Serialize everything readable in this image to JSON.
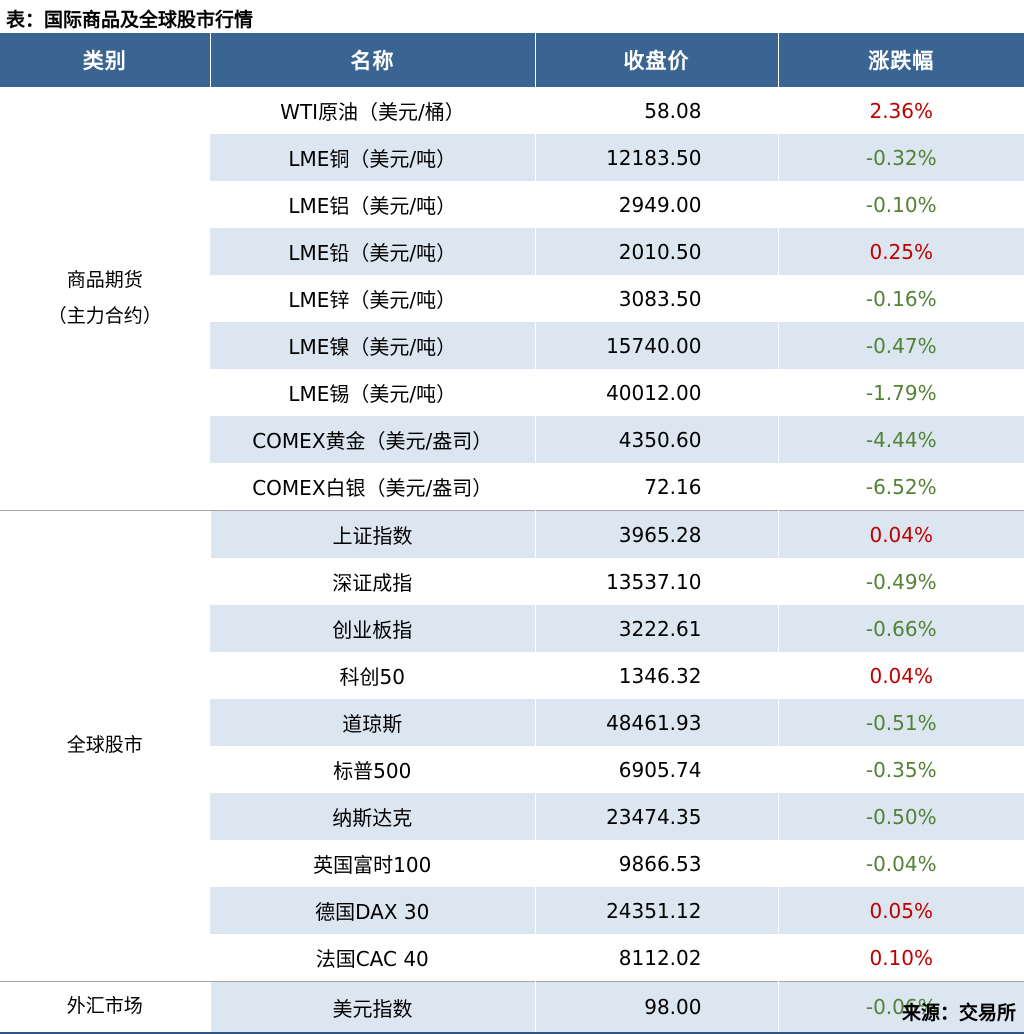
{
  "title": "表：国际商品及全球股市行情",
  "source": "来源：交易所",
  "colors": {
    "page_bg": "#FFFFFF",
    "header_bg": "#3A6491",
    "header_text": "#FFFFFF",
    "stripe": "#DCE6F1",
    "up": "#C00000",
    "down": "#538135",
    "section_divider": "#A6A6A6",
    "bottom_rule": "#2E5584"
  },
  "table": {
    "columns": [
      "类别",
      "名称",
      "收盘价",
      "涨跌幅"
    ],
    "sections": [
      {
        "category_lines": [
          "商品期货",
          "（主力合约）"
        ],
        "rows": [
          {
            "name": "WTI原油（美元/桶）",
            "close": "58.08",
            "change": "2.36%"
          },
          {
            "name": "LME铜（美元/吨）",
            "close": "12183.50",
            "change": "-0.32%"
          },
          {
            "name": "LME铝（美元/吨）",
            "close": "2949.00",
            "change": "-0.10%"
          },
          {
            "name": "LME铅（美元/吨）",
            "close": "2010.50",
            "change": "0.25%"
          },
          {
            "name": "LME锌（美元/吨）",
            "close": "3083.50",
            "change": "-0.16%"
          },
          {
            "name": "LME镍（美元/吨）",
            "close": "15740.00",
            "change": "-0.47%"
          },
          {
            "name": "LME锡（美元/吨）",
            "close": "40012.00",
            "change": "-1.79%"
          },
          {
            "name": "COMEX黄金（美元/盎司）",
            "close": "4350.60",
            "change": "-4.44%"
          },
          {
            "name": "COMEX白银（美元/盎司）",
            "close": "72.16",
            "change": "-6.52%"
          }
        ]
      },
      {
        "category_lines": [
          "全球股市"
        ],
        "rows": [
          {
            "name": "上证指数",
            "close": "3965.28",
            "change": "0.04%"
          },
          {
            "name": "深证成指",
            "close": "13537.10",
            "change": "-0.49%"
          },
          {
            "name": "创业板指",
            "close": "3222.61",
            "change": "-0.66%"
          },
          {
            "name": "科创50",
            "close": "1346.32",
            "change": "0.04%"
          },
          {
            "name": "道琼斯",
            "close": "48461.93",
            "change": "-0.51%"
          },
          {
            "name": "标普500",
            "close": "6905.74",
            "change": "-0.35%"
          },
          {
            "name": "纳斯达克",
            "close": "23474.35",
            "change": "-0.50%"
          },
          {
            "name": "英国富时100",
            "close": "9866.53",
            "change": "-0.04%"
          },
          {
            "name": "德国DAX 30",
            "close": "24351.12",
            "change": "0.05%"
          },
          {
            "name": "法国CAC 40",
            "close": "8112.02",
            "change": "0.10%"
          }
        ]
      },
      {
        "category_lines": [
          "外汇市场"
        ],
        "rows": [
          {
            "name": "美元指数",
            "close": "98.00",
            "change": "-0.06%"
          }
        ]
      }
    ]
  },
  "chart_data": {
    "type": "table",
    "title": "表：国际商品及全球股市行情",
    "source": "来源：交易所",
    "columns": [
      "类别",
      "名称",
      "收盘价",
      "涨跌幅"
    ],
    "rows": [
      [
        "商品期货（主力合约）",
        "WTI原油（美元/桶）",
        58.08,
        "2.36%"
      ],
      [
        "商品期货（主力合约）",
        "LME铜（美元/吨）",
        12183.5,
        "-0.32%"
      ],
      [
        "商品期货（主力合约）",
        "LME铝（美元/吨）",
        2949.0,
        "-0.10%"
      ],
      [
        "商品期货（主力合约）",
        "LME铅（美元/吨）",
        2010.5,
        "0.25%"
      ],
      [
        "商品期货（主力合约）",
        "LME锌（美元/吨）",
        3083.5,
        "-0.16%"
      ],
      [
        "商品期货（主力合约）",
        "LME镍（美元/吨）",
        15740.0,
        "-0.47%"
      ],
      [
        "商品期货（主力合约）",
        "LME锡（美元/吨）",
        40012.0,
        "-1.79%"
      ],
      [
        "商品期货（主力合约）",
        "COMEX黄金（美元/盎司）",
        4350.6,
        "-4.44%"
      ],
      [
        "商品期货（主力合约）",
        "COMEX白银（美元/盎司）",
        72.16,
        "-6.52%"
      ],
      [
        "全球股市",
        "上证指数",
        3965.28,
        "0.04%"
      ],
      [
        "全球股市",
        "深证成指",
        13537.1,
        "-0.49%"
      ],
      [
        "全球股市",
        "创业板指",
        3222.61,
        "-0.66%"
      ],
      [
        "全球股市",
        "科创50",
        1346.32,
        "0.04%"
      ],
      [
        "全球股市",
        "道琼斯",
        48461.93,
        "-0.51%"
      ],
      [
        "全球股市",
        "标普500",
        6905.74,
        "-0.35%"
      ],
      [
        "全球股市",
        "纳斯达克",
        23474.35,
        "-0.50%"
      ],
      [
        "全球股市",
        "英国富时100",
        9866.53,
        "-0.04%"
      ],
      [
        "全球股市",
        "德国DAX 30",
        24351.12,
        "0.05%"
      ],
      [
        "全球股市",
        "法国CAC 40",
        8112.02,
        "0.10%"
      ],
      [
        "外汇市场",
        "美元指数",
        98.0,
        "-0.06%"
      ]
    ],
    "color_convention": {
      "positive": "#C00000",
      "negative": "#538135"
    }
  }
}
